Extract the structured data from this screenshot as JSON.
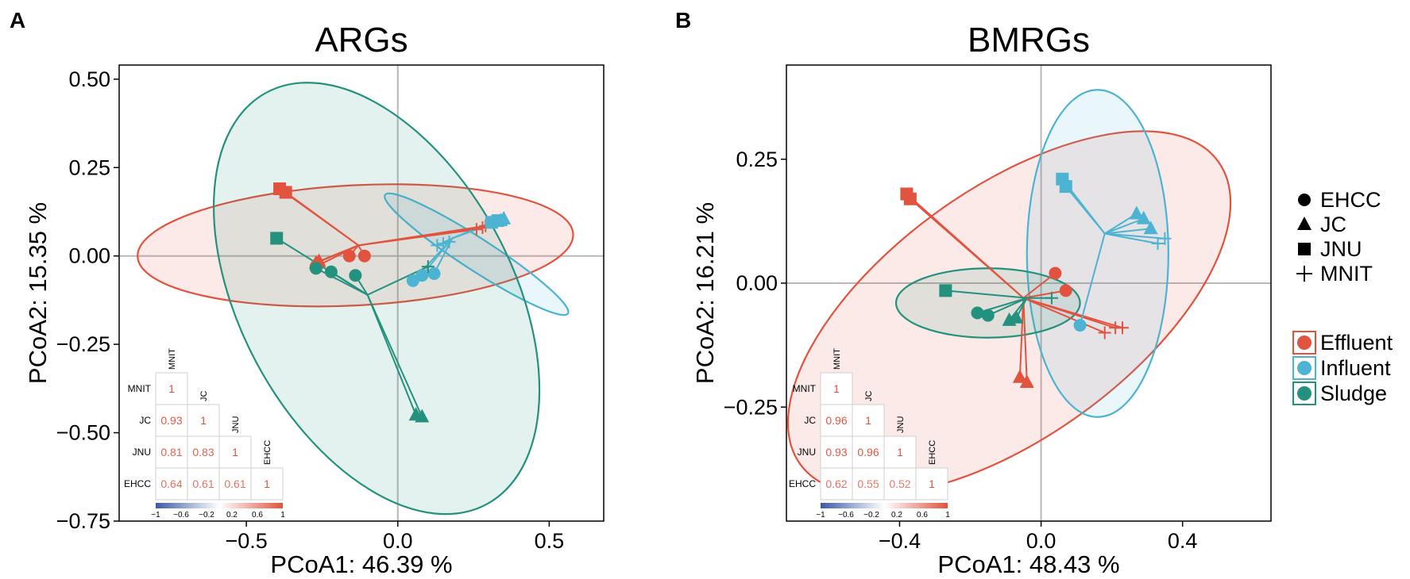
{
  "colors": {
    "effluent": "#E2533F",
    "influent": "#4DB3D2",
    "sludge": "#24917E",
    "grid": "#b8b8b8",
    "axis": "#000000",
    "corr_high": "#E2533F",
    "corr_low": "#3A5BA9"
  },
  "legend": {
    "shapes": [
      {
        "label": "EHCC",
        "icon": "circle-icon"
      },
      {
        "label": "JC",
        "icon": "triangle-icon"
      },
      {
        "label": "JNU",
        "icon": "square-icon"
      },
      {
        "label": "MNIT",
        "icon": "plus-icon"
      }
    ],
    "groups": [
      {
        "label": "Effluent",
        "color": "#E2533F"
      },
      {
        "label": "Influent",
        "color": "#4DB3D2"
      },
      {
        "label": "Sludge",
        "color": "#24917E"
      }
    ]
  },
  "chart_data": [
    {
      "panel": "A",
      "type": "scatter",
      "title": "ARGs",
      "xlabel": "PCoA1:  46.39 %",
      "ylabel": "PCoA2:  15.35 %",
      "xlim": [
        -0.92,
        0.68
      ],
      "ylim": [
        -0.75,
        0.54
      ],
      "xticks": [
        -0.5,
        0.0,
        0.5
      ],
      "xtick_labels": [
        "-0.5",
        "0.0",
        "0.5"
      ],
      "yticks": [
        0.5,
        0.25,
        0.0,
        -0.25,
        -0.5,
        -0.75
      ],
      "ytick_labels": [
        "0.50",
        "0.25",
        "0.00",
        "-0.25",
        "-0.50",
        "-0.75"
      ],
      "groups": [
        {
          "name": "Effluent",
          "color": "#E2533F",
          "centroid": [
            -0.13,
            0.03
          ],
          "ellipse": {
            "cx": -0.14,
            "cy": 0.03,
            "rx": 0.72,
            "ry": 0.17,
            "angle": -3
          },
          "points": [
            {
              "shape": "square",
              "x": -0.39,
              "y": 0.19
            },
            {
              "shape": "square",
              "x": -0.37,
              "y": 0.18
            },
            {
              "shape": "triangle",
              "x": -0.26,
              "y": -0.015
            },
            {
              "shape": "triangle",
              "x": -0.27,
              "y": -0.02
            },
            {
              "shape": "circle",
              "x": -0.16,
              "y": 0.0
            },
            {
              "shape": "circle",
              "x": -0.11,
              "y": 0.0
            },
            {
              "shape": "circle",
              "x": -0.27,
              "y": -0.03
            },
            {
              "shape": "plus",
              "x": 0.26,
              "y": 0.075
            },
            {
              "shape": "plus",
              "x": 0.28,
              "y": 0.08
            },
            {
              "shape": "plus",
              "x": 0.29,
              "y": 0.085
            }
          ]
        },
        {
          "name": "Influent",
          "color": "#4DB3D2",
          "centroid": [
            0.18,
            0.05
          ],
          "ellipse": {
            "cx": 0.26,
            "cy": 0.005,
            "rx": 0.36,
            "ry": 0.045,
            "angle": 33
          },
          "points": [
            {
              "shape": "square",
              "x": 0.31,
              "y": 0.095
            },
            {
              "shape": "square",
              "x": 0.33,
              "y": 0.1
            },
            {
              "shape": "triangle",
              "x": 0.34,
              "y": 0.1
            },
            {
              "shape": "triangle",
              "x": 0.35,
              "y": 0.105
            },
            {
              "shape": "circle",
              "x": 0.08,
              "y": -0.055
            },
            {
              "shape": "circle",
              "x": 0.05,
              "y": -0.07
            },
            {
              "shape": "circle",
              "x": 0.12,
              "y": -0.05
            },
            {
              "shape": "plus",
              "x": 0.13,
              "y": 0.03
            },
            {
              "shape": "plus",
              "x": 0.15,
              "y": 0.035
            },
            {
              "shape": "plus",
              "x": 0.17,
              "y": 0.04
            }
          ]
        },
        {
          "name": "Sludge",
          "color": "#24917E",
          "centroid": [
            -0.1,
            -0.11
          ],
          "ellipse": {
            "cx": -0.07,
            "cy": -0.12,
            "rx": 0.45,
            "ry": 0.66,
            "angle": -28
          },
          "points": [
            {
              "shape": "square",
              "x": -0.4,
              "y": 0.05
            },
            {
              "shape": "circle",
              "x": -0.22,
              "y": -0.045
            },
            {
              "shape": "circle",
              "x": -0.27,
              "y": -0.035
            },
            {
              "shape": "circle",
              "x": -0.14,
              "y": -0.055
            },
            {
              "shape": "triangle",
              "x": 0.06,
              "y": -0.45
            },
            {
              "shape": "triangle",
              "x": 0.08,
              "y": -0.455
            },
            {
              "shape": "plus",
              "x": 0.1,
              "y": -0.03
            }
          ]
        }
      ],
      "correlation": {
        "labels": [
          "MNIT",
          "JC",
          "JNU",
          "EHCC"
        ],
        "values": [
          [
            1
          ],
          [
            0.93,
            1
          ],
          [
            0.81,
            0.83,
            1
          ],
          [
            0.64,
            0.61,
            0.61,
            1
          ]
        ],
        "value_labels": [
          [
            "1"
          ],
          [
            "0.93",
            "1"
          ],
          [
            "0.81",
            "0.83",
            "1"
          ],
          [
            "0.64",
            "0.61",
            "0.61",
            "1"
          ]
        ],
        "colorbar_ticks": [
          "-1",
          "-0.6",
          "-0.2",
          "0.2",
          "0.6",
          "1"
        ]
      }
    },
    {
      "panel": "B",
      "type": "scatter",
      "title": "BMRGs",
      "xlabel": "PCoA1:  48.43 %",
      "ylabel": "PCoA2:  16.21 %",
      "xlim": [
        -0.72,
        0.65
      ],
      "ylim": [
        -0.48,
        0.44
      ],
      "xticks": [
        -0.4,
        0.0,
        0.4
      ],
      "xtick_labels": [
        "-0.4",
        "0.0",
        "0.4"
      ],
      "yticks": [
        0.25,
        0.0,
        -0.25
      ],
      "ytick_labels": [
        "0.25",
        "0.00",
        "-0.25"
      ],
      "groups": [
        {
          "name": "Effluent",
          "color": "#E2533F",
          "centroid": [
            -0.05,
            -0.03
          ],
          "ellipse": {
            "cx": -0.09,
            "cy": -0.06,
            "rx": 0.73,
            "ry": 0.25,
            "angle": -36
          },
          "points": [
            {
              "shape": "square",
              "x": -0.38,
              "y": 0.18
            },
            {
              "shape": "square",
              "x": -0.37,
              "y": 0.17
            },
            {
              "shape": "triangle",
              "x": -0.06,
              "y": -0.19
            },
            {
              "shape": "triangle",
              "x": -0.04,
              "y": -0.2
            },
            {
              "shape": "circle",
              "x": 0.07,
              "y": -0.015
            },
            {
              "shape": "circle",
              "x": 0.04,
              "y": 0.02
            },
            {
              "shape": "plus",
              "x": 0.18,
              "y": -0.1
            },
            {
              "shape": "plus",
              "x": 0.21,
              "y": -0.09
            },
            {
              "shape": "plus",
              "x": 0.23,
              "y": -0.09
            }
          ]
        },
        {
          "name": "Influent",
          "color": "#4DB3D2",
          "centroid": [
            0.18,
            0.1
          ],
          "ellipse": {
            "cx": 0.16,
            "cy": 0.06,
            "rx": 0.2,
            "ry": 0.33,
            "angle": 0
          },
          "points": [
            {
              "shape": "square",
              "x": 0.07,
              "y": 0.195
            },
            {
              "shape": "square",
              "x": 0.06,
              "y": 0.21
            },
            {
              "shape": "triangle",
              "x": 0.27,
              "y": 0.14
            },
            {
              "shape": "triangle",
              "x": 0.29,
              "y": 0.13
            },
            {
              "shape": "triangle",
              "x": 0.31,
              "y": 0.11
            },
            {
              "shape": "circle",
              "x": 0.11,
              "y": -0.085
            },
            {
              "shape": "plus",
              "x": 0.33,
              "y": 0.08
            },
            {
              "shape": "plus",
              "x": 0.35,
              "y": 0.09
            }
          ]
        },
        {
          "name": "Sludge",
          "color": "#24917E",
          "centroid": [
            -0.04,
            -0.03
          ],
          "ellipse": {
            "cx": -0.15,
            "cy": -0.04,
            "rx": 0.26,
            "ry": 0.07,
            "angle": 0
          },
          "points": [
            {
              "shape": "square",
              "x": -0.27,
              "y": -0.015
            },
            {
              "shape": "circle",
              "x": -0.15,
              "y": -0.065
            },
            {
              "shape": "circle",
              "x": -0.18,
              "y": -0.06
            },
            {
              "shape": "triangle",
              "x": -0.09,
              "y": -0.075
            },
            {
              "shape": "triangle",
              "x": -0.07,
              "y": -0.07
            },
            {
              "shape": "plus",
              "x": 0.03,
              "y": -0.03
            }
          ]
        }
      ],
      "correlation": {
        "labels": [
          "MNIT",
          "JC",
          "JNU",
          "EHCC"
        ],
        "values": [
          [
            1
          ],
          [
            0.96,
            1
          ],
          [
            0.93,
            0.96,
            1
          ],
          [
            0.62,
            0.55,
            0.52,
            1
          ]
        ],
        "value_labels": [
          [
            "1"
          ],
          [
            "0.96",
            "1"
          ],
          [
            "0.93",
            "0.96",
            "1"
          ],
          [
            "0.62",
            "0.55",
            "0.52",
            "1"
          ]
        ],
        "colorbar_ticks": [
          "-1",
          "-0.6",
          "-0.2",
          "0.2",
          "0.6",
          "1"
        ]
      }
    }
  ],
  "panel_labels": [
    "A",
    "B"
  ]
}
